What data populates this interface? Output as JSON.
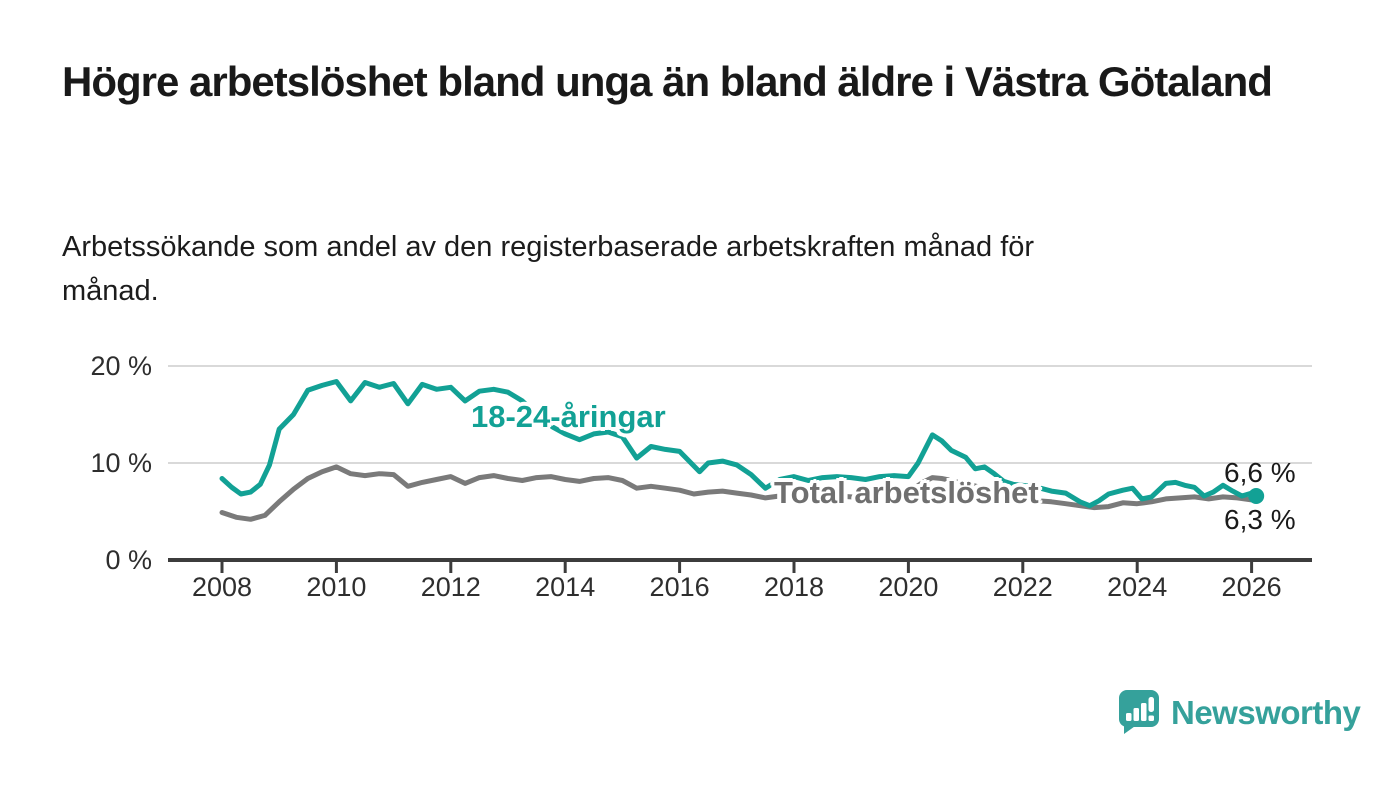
{
  "header": {
    "title": "Högre arbetslöshet bland unga än bland äldre i Västra Götaland",
    "subtitle": "Arbetssökande som andel av den registerbaserade arbetskraften månad för månad."
  },
  "colors": {
    "young_line": "#12a195",
    "total_line": "#7a7a7a",
    "total_label": "#6f6f6f",
    "gridline": "#d9d9d9",
    "axis": "#3c3c3c",
    "text": "#1a1a1a",
    "logo": "#35a19b"
  },
  "chart_data": {
    "type": "line",
    "title": "Högre arbetslöshet bland unga än bland äldre i Västra Götaland",
    "subtitle": "Arbetssökande som andel av den registerbaserade arbetskraften månad för månad.",
    "xlabel": "",
    "ylabel": "",
    "unit": "%",
    "grid": true,
    "legend_position": "inline-labels",
    "xlim": [
      2007.06,
      2027.05
    ],
    "ylim": [
      0,
      22.5
    ],
    "x_ticks": [
      {
        "value": 2008,
        "label": "2008"
      },
      {
        "value": 2010,
        "label": "2010"
      },
      {
        "value": 2012,
        "label": "2012"
      },
      {
        "value": 2014,
        "label": "2014"
      },
      {
        "value": 2016,
        "label": "2016"
      },
      {
        "value": 2018,
        "label": "2018"
      },
      {
        "value": 2020,
        "label": "2020"
      },
      {
        "value": 2022,
        "label": "2022"
      },
      {
        "value": 2024,
        "label": "2024"
      },
      {
        "value": 2026,
        "label": "2026"
      }
    ],
    "y_ticks": [
      {
        "value": 20,
        "label": "20 %"
      },
      {
        "value": 10,
        "label": "10 %"
      },
      {
        "value": 0,
        "label": "0 %"
      }
    ],
    "series": [
      {
        "name": "18-24-åringar",
        "color": "#12a195",
        "end_label": "6,6 %",
        "end_dot": true,
        "x": [
          2008.0,
          2008.17,
          2008.33,
          2008.5,
          2008.67,
          2008.83,
          2009.0,
          2009.25,
          2009.5,
          2009.75,
          2010.0,
          2010.25,
          2010.5,
          2010.75,
          2011.0,
          2011.25,
          2011.5,
          2011.75,
          2012.0,
          2012.25,
          2012.5,
          2012.75,
          2013.0,
          2013.25,
          2013.5,
          2013.75,
          2014.0,
          2014.25,
          2014.5,
          2014.75,
          2015.0,
          2015.25,
          2015.5,
          2015.75,
          2016.0,
          2016.35,
          2016.5,
          2016.75,
          2017.0,
          2017.25,
          2017.5,
          2017.75,
          2018.0,
          2018.25,
          2018.5,
          2018.75,
          2019.0,
          2019.25,
          2019.5,
          2019.75,
          2020.0,
          2020.17,
          2020.42,
          2020.58,
          2020.75,
          2021.0,
          2021.17,
          2021.33,
          2021.5,
          2021.67,
          2021.83,
          2022.0,
          2022.25,
          2022.5,
          2022.75,
          2023.0,
          2023.17,
          2023.33,
          2023.5,
          2023.75,
          2023.92,
          2024.08,
          2024.25,
          2024.5,
          2024.67,
          2024.83,
          2025.0,
          2025.17,
          2025.33,
          2025.5,
          2025.67,
          2025.83,
          2026.0,
          2026.08
        ],
        "values": [
          8.4,
          7.5,
          6.8,
          7.0,
          7.8,
          9.8,
          13.5,
          15.0,
          17.5,
          18.0,
          18.4,
          16.4,
          18.3,
          17.8,
          18.2,
          16.1,
          18.1,
          17.6,
          17.8,
          16.4,
          17.4,
          17.6,
          17.3,
          16.4,
          15.0,
          13.8,
          13.0,
          12.4,
          13.0,
          13.2,
          12.7,
          10.5,
          11.7,
          11.4,
          11.2,
          9.1,
          10.0,
          10.2,
          9.8,
          8.8,
          7.4,
          8.3,
          8.6,
          8.2,
          8.5,
          8.6,
          8.5,
          8.3,
          8.6,
          8.7,
          8.6,
          10.0,
          12.9,
          12.3,
          11.3,
          10.6,
          9.4,
          9.6,
          8.9,
          8.1,
          7.8,
          7.7,
          7.5,
          7.1,
          6.9,
          6.0,
          5.6,
          6.1,
          6.8,
          7.2,
          7.4,
          6.3,
          6.5,
          7.9,
          8.0,
          7.7,
          7.5,
          6.6,
          7.0,
          7.7,
          7.1,
          6.6,
          6.9,
          6.6
        ]
      },
      {
        "name": "Total arbetslöshet",
        "color": "#7a7a7a",
        "end_label": "6,3 %",
        "end_dot": false,
        "x": [
          2008.0,
          2008.25,
          2008.5,
          2008.75,
          2009.0,
          2009.25,
          2009.5,
          2009.75,
          2010.0,
          2010.25,
          2010.5,
          2010.75,
          2011.0,
          2011.25,
          2011.5,
          2011.75,
          2012.0,
          2012.25,
          2012.5,
          2012.75,
          2013.0,
          2013.25,
          2013.5,
          2013.75,
          2014.0,
          2014.25,
          2014.5,
          2014.75,
          2015.0,
          2015.25,
          2015.5,
          2015.75,
          2016.0,
          2016.25,
          2016.5,
          2016.75,
          2017.0,
          2017.25,
          2017.5,
          2017.75,
          2018.0,
          2018.25,
          2018.5,
          2018.75,
          2019.0,
          2019.25,
          2019.5,
          2019.75,
          2020.0,
          2020.25,
          2020.42,
          2020.58,
          2020.75,
          2021.0,
          2021.25,
          2021.5,
          2021.75,
          2022.0,
          2022.25,
          2022.5,
          2022.75,
          2023.0,
          2023.25,
          2023.5,
          2023.75,
          2024.0,
          2024.25,
          2024.5,
          2024.75,
          2025.0,
          2025.25,
          2025.5,
          2025.75,
          2026.0,
          2026.08
        ],
        "values": [
          4.9,
          4.4,
          4.2,
          4.6,
          6.0,
          7.3,
          8.4,
          9.1,
          9.6,
          8.9,
          8.7,
          8.9,
          8.8,
          7.6,
          8.0,
          8.3,
          8.6,
          7.9,
          8.5,
          8.7,
          8.4,
          8.2,
          8.5,
          8.6,
          8.3,
          8.1,
          8.4,
          8.5,
          8.2,
          7.4,
          7.6,
          7.4,
          7.2,
          6.8,
          7.0,
          7.1,
          6.9,
          6.7,
          6.4,
          6.6,
          6.6,
          6.4,
          6.5,
          6.6,
          6.5,
          6.5,
          6.7,
          6.9,
          7.0,
          8.0,
          8.5,
          8.4,
          8.2,
          7.9,
          7.5,
          7.1,
          6.7,
          6.4,
          6.1,
          6.0,
          5.8,
          5.6,
          5.4,
          5.5,
          5.9,
          5.8,
          6.0,
          6.3,
          6.4,
          6.5,
          6.3,
          6.5,
          6.4,
          6.2,
          6.3
        ]
      }
    ]
  },
  "logo": {
    "text": "Newsworthy"
  }
}
